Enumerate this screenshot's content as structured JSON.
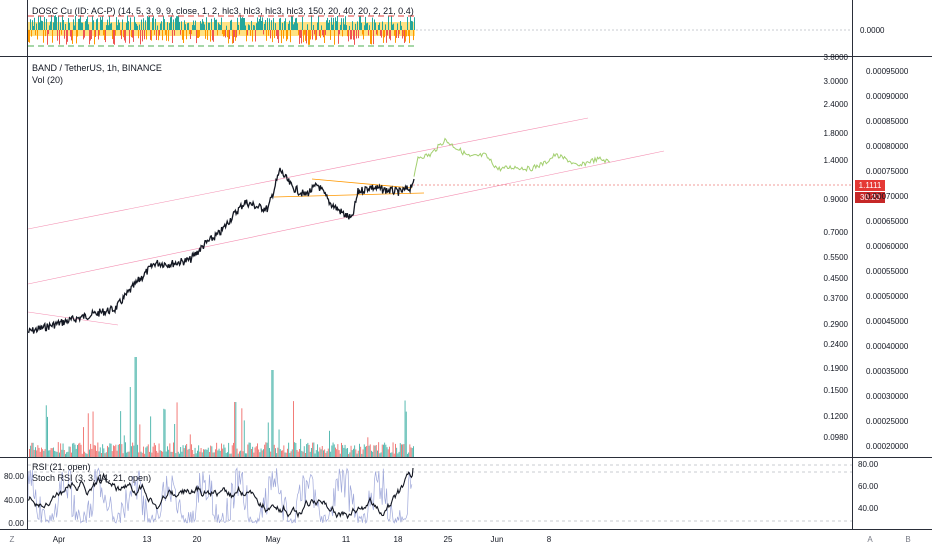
{
  "top_indicator": {
    "legend": "DOSC Cu (ID: AC-P) (14, 5, 3, 9, 9, close, 1, 2, hlc3, hlc3, hlc3, hlc3, 150, 20, 40, 20, 2, 21, 0.4)",
    "axis_value": "0.0000"
  },
  "main_chart": {
    "title": "BAND / TetherUS, 1h, BINANCE",
    "volume_label": "Vol (20)",
    "left_axis_labels": [
      "3.8000",
      "3.0000",
      "2.4000",
      "1.8000",
      "1.4000",
      "0.9000",
      "0.7000",
      "0.5500",
      "0.4500",
      "0.3700",
      "0.2900",
      "0.2400",
      "0.1900",
      "0.1500",
      "0.1200",
      "0.0980"
    ],
    "right_axis_labels": [
      "0.00095000",
      "0.00090000",
      "0.00085000",
      "0.00080000",
      "0.00075000",
      "0.00070000",
      "0.00065000",
      "0.00060000",
      "0.00055000",
      "0.00050000",
      "0.00045000",
      "0.00040000",
      "0.00035000",
      "0.00030000",
      "0.00025000",
      "0.00020000"
    ],
    "current_price": "1.1111",
    "countdown": "30:20"
  },
  "rsi": {
    "legend_rsi": "RSI (21, open)",
    "legend_stoch": "Stoch RSI (3, 3, 14, 21, open)",
    "left_axis_labels": [
      "80.00",
      "40.00",
      "0.00"
    ],
    "right_axis_labels": [
      "80.00",
      "60.00",
      "40.00"
    ]
  },
  "time_axis": {
    "labels": [
      "Apr",
      "13",
      "20",
      "May",
      "11",
      "18",
      "25",
      "Jun",
      "8"
    ]
  },
  "corner": {
    "left": "Z",
    "auto": "A",
    "right": "B"
  },
  "colors": {
    "price_line": "#131722",
    "projection_line": "#8bc34a",
    "channel_line": "#e91e63",
    "triangle_line": "#ff9800",
    "price_tag": "#e53935",
    "volume_up": "#26a69a",
    "volume_down": "#ef5350"
  }
}
